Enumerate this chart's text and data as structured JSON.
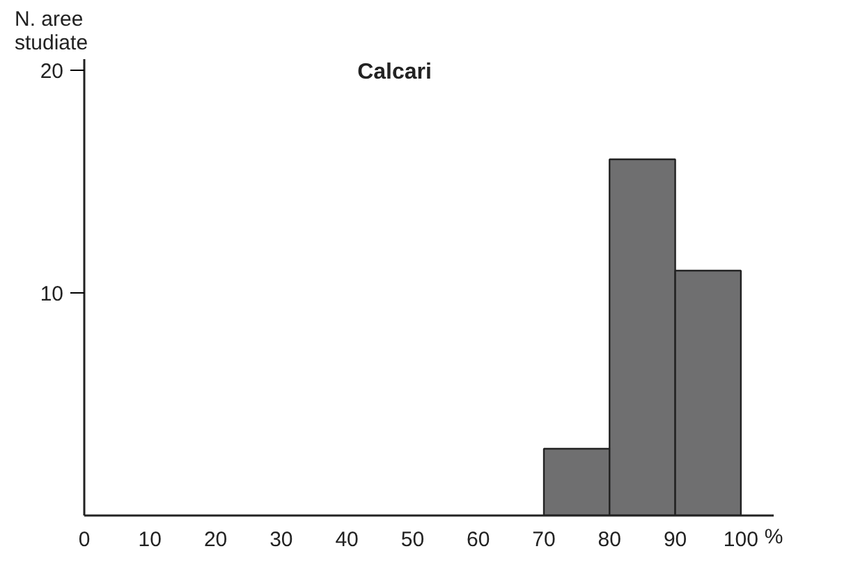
{
  "chart_data": {
    "type": "histogram",
    "title": "Calcari",
    "ylabel": "N. aree studiate",
    "xlabel": "%",
    "bins": [
      70,
      80,
      90,
      100
    ],
    "values": [
      3,
      16,
      11
    ],
    "color": "#6f6f70",
    "xlim": [
      0,
      105
    ],
    "xticks": [
      0,
      10,
      20,
      30,
      40,
      50,
      60,
      70,
      80,
      90,
      100
    ],
    "ylim": [
      0,
      20.5
    ],
    "yticks": [
      10,
      20
    ],
    "grid": false
  }
}
